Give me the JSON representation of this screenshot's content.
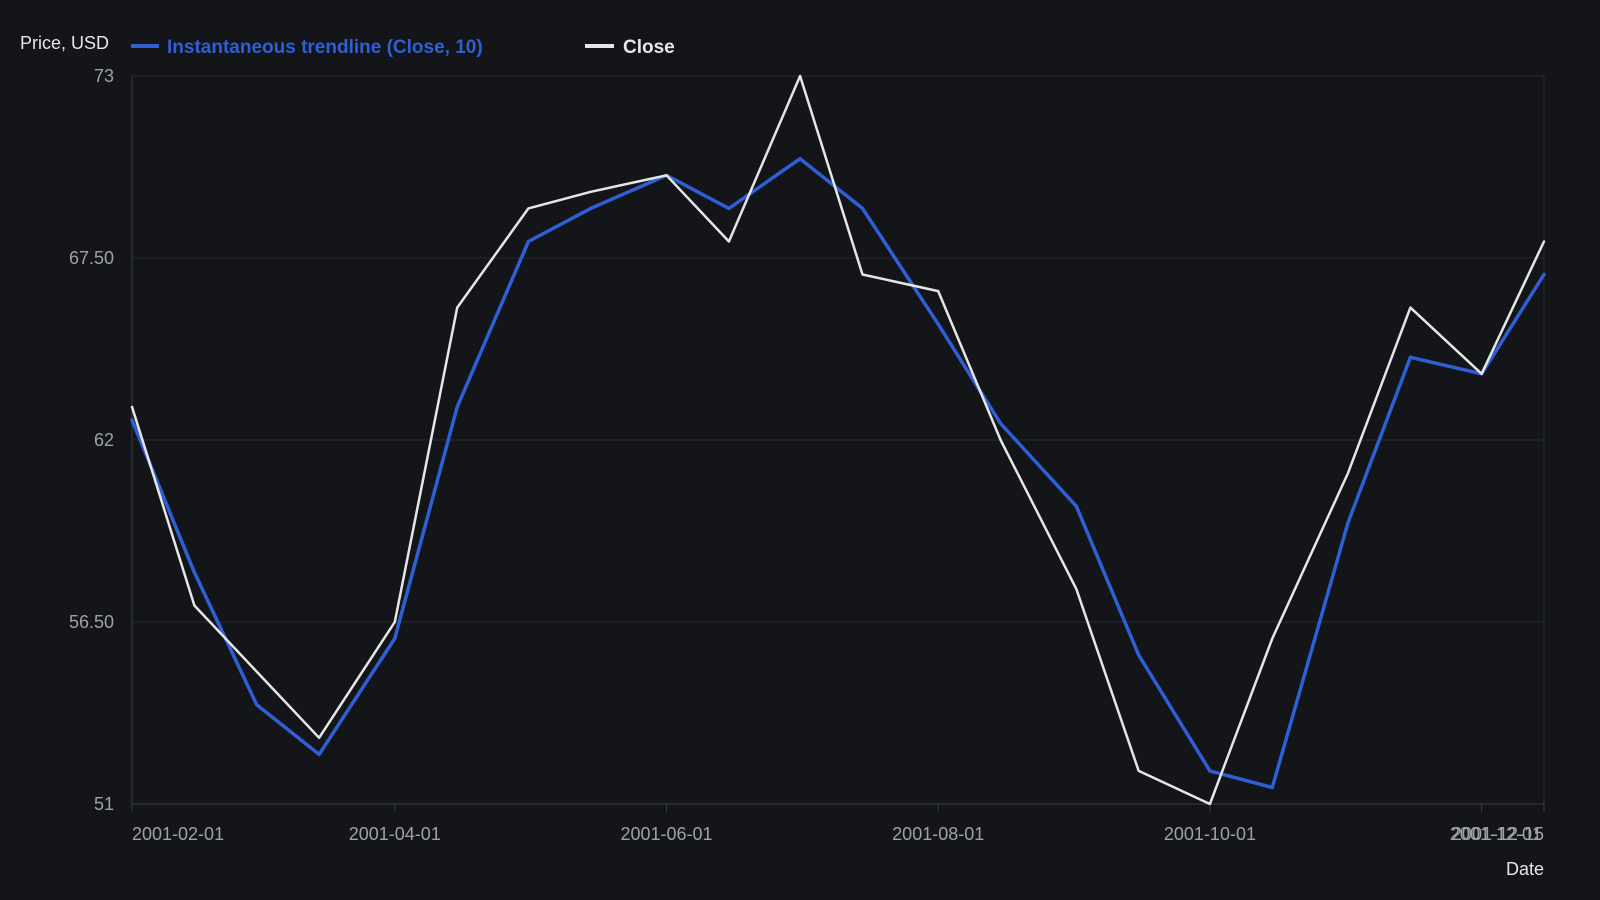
{
  "chart_data": {
    "type": "line",
    "ylabel": "Price, USD",
    "xlabel": "Date",
    "ylim": [
      51,
      73
    ],
    "yticks": [
      "51",
      "56.50",
      "62",
      "67.50",
      "73"
    ],
    "xticks": [
      "2001-02-01",
      "2001-04-01",
      "2001-06-01",
      "2001-08-01",
      "2001-10-01",
      "2001-12-01",
      "2001-12-15"
    ],
    "xlim": [
      "2001-02-01",
      "2001-12-15"
    ],
    "grid": true,
    "legend_position": "top-left",
    "colors": {
      "background": "#131519",
      "trendline": "#2f5fd6",
      "close": "#e6e6e6",
      "grid": "#262a31",
      "tick": "#9ea2a8"
    },
    "series": [
      {
        "name": "Instantaneous trendline (Close, 10)",
        "x": [
          "2001-02-01",
          "2001-02-15",
          "2001-03-01",
          "2001-03-15",
          "2001-04-01",
          "2001-04-15",
          "2001-05-01",
          "2001-05-15",
          "2001-06-01",
          "2001-06-15",
          "2001-07-01",
          "2001-07-15",
          "2001-08-01",
          "2001-08-15",
          "2001-09-01",
          "2001-09-15",
          "2001-10-01",
          "2001-10-15",
          "2001-11-01",
          "2001-11-15",
          "2001-12-01",
          "2001-12-15"
        ],
        "values": [
          62.6,
          58.0,
          54.0,
          52.5,
          56.0,
          63.0,
          68.0,
          69.0,
          70.0,
          69.0,
          70.5,
          69.0,
          65.5,
          62.5,
          60.0,
          55.5,
          52.0,
          51.5,
          59.5,
          64.5,
          64.0,
          67.0
        ]
      },
      {
        "name": "Close",
        "x": [
          "2001-02-01",
          "2001-02-15",
          "2001-03-01",
          "2001-03-15",
          "2001-04-01",
          "2001-04-15",
          "2001-05-01",
          "2001-05-15",
          "2001-06-01",
          "2001-06-15",
          "2001-07-01",
          "2001-07-15",
          "2001-08-01",
          "2001-08-15",
          "2001-09-01",
          "2001-09-15",
          "2001-10-01",
          "2001-10-15",
          "2001-11-01",
          "2001-11-15",
          "2001-12-01",
          "2001-12-15"
        ],
        "values": [
          63.0,
          57.0,
          55.0,
          53.0,
          56.5,
          66.0,
          69.0,
          69.5,
          70.0,
          68.0,
          73.0,
          67.0,
          66.5,
          62.0,
          57.5,
          52.0,
          51.0,
          56.0,
          61.0,
          66.0,
          64.0,
          68.0
        ]
      }
    ]
  }
}
